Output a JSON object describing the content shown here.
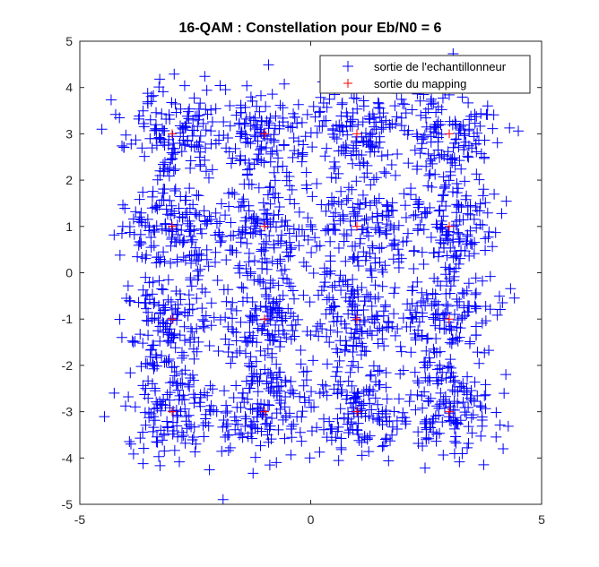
{
  "chart_data": {
    "type": "scatter",
    "title": "16-QAM : Constellation pour Eb/N0 = 6",
    "xlabel": "",
    "ylabel": "",
    "xlim": [
      -5,
      5
    ],
    "ylim": [
      -5,
      5
    ],
    "xticks": [
      "-5",
      "0",
      "5"
    ],
    "yticks": [
      "-5",
      "-4",
      "-3",
      "-2",
      "-1",
      "0",
      "1",
      "2",
      "3",
      "4",
      "5"
    ],
    "grid": false,
    "legend_position": "top-right",
    "marker": "+",
    "series": [
      {
        "name": "sortie de l'echantillonneur",
        "color": "#0000ff",
        "description_kind": "noisy received samples around each constellation point",
        "centers": [
          [
            -3,
            -3
          ],
          [
            -3,
            -1
          ],
          [
            -3,
            1
          ],
          [
            -3,
            3
          ],
          [
            -1,
            -3
          ],
          [
            -1,
            -1
          ],
          [
            -1,
            1
          ],
          [
            -1,
            3
          ],
          [
            1,
            -3
          ],
          [
            1,
            -1
          ],
          [
            1,
            1
          ],
          [
            1,
            3
          ],
          [
            3,
            -3
          ],
          [
            3,
            -1
          ],
          [
            3,
            1
          ],
          [
            3,
            3
          ]
        ],
        "points_per_center": 140,
        "noise_sigma": 0.55
      },
      {
        "name": "sortie du mapping",
        "color": "#ff0000",
        "points": [
          [
            -3,
            -3
          ],
          [
            -3,
            -1
          ],
          [
            -3,
            1
          ],
          [
            -3,
            3
          ],
          [
            -1,
            -3
          ],
          [
            -1,
            -1
          ],
          [
            -1,
            1
          ],
          [
            -1,
            3
          ],
          [
            1,
            -3
          ],
          [
            1,
            -1
          ],
          [
            1,
            1
          ],
          [
            1,
            3
          ],
          [
            3,
            -3
          ],
          [
            3,
            -1
          ],
          [
            3,
            1
          ],
          [
            3,
            3
          ]
        ]
      }
    ]
  }
}
